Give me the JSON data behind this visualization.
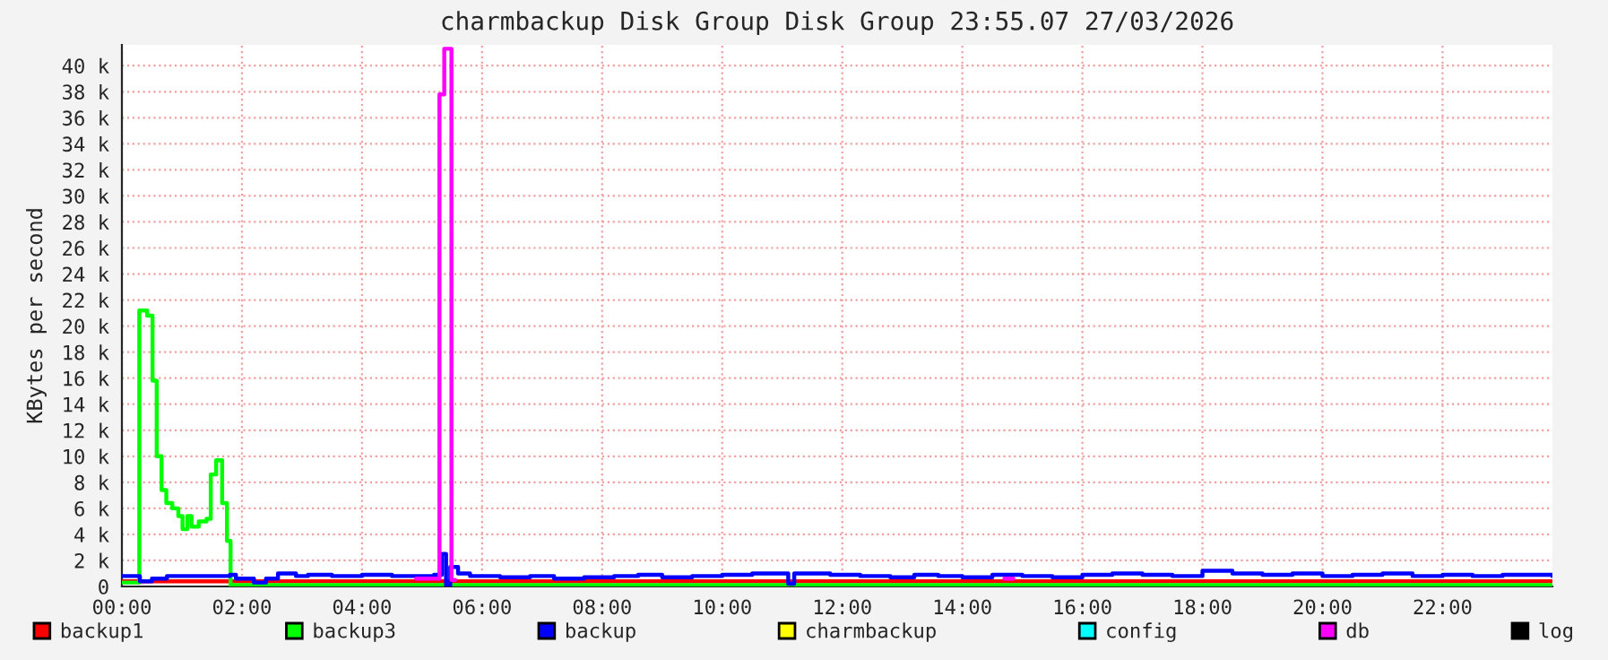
{
  "chart_data": {
    "type": "step",
    "title": "charmbackup Disk Group Disk Group 23:55.07 27/03/2026",
    "ylabel": "KBytes per second",
    "xlim": [
      0,
      23.83
    ],
    "ylim": [
      0,
      41600
    ],
    "xticks": [
      {
        "value": 0,
        "label": "00:00"
      },
      {
        "value": 2,
        "label": "02:00"
      },
      {
        "value": 4,
        "label": "04:00"
      },
      {
        "value": 6,
        "label": "06:00"
      },
      {
        "value": 8,
        "label": "08:00"
      },
      {
        "value": 10,
        "label": "10:00"
      },
      {
        "value": 12,
        "label": "12:00"
      },
      {
        "value": 14,
        "label": "14:00"
      },
      {
        "value": 16,
        "label": "16:00"
      },
      {
        "value": 18,
        "label": "18:00"
      },
      {
        "value": 20,
        "label": "20:00"
      },
      {
        "value": 22,
        "label": "22:00"
      }
    ],
    "yticks": [
      0,
      {
        "value": 2000,
        "label": "2 k"
      },
      {
        "value": 4000,
        "label": "4 k"
      },
      {
        "value": 6000,
        "label": "6 k"
      },
      {
        "value": 8000,
        "label": "8 k"
      },
      {
        "value": 10000,
        "label": "10 k"
      },
      {
        "value": 12000,
        "label": "12 k"
      },
      {
        "value": 14000,
        "label": "14 k"
      },
      {
        "value": 16000,
        "label": "16 k"
      },
      {
        "value": 18000,
        "label": "18 k"
      },
      {
        "value": 20000,
        "label": "20 k"
      },
      {
        "value": 22000,
        "label": "22 k"
      },
      {
        "value": 24000,
        "label": "24 k"
      },
      {
        "value": 26000,
        "label": "26 k"
      },
      {
        "value": 28000,
        "label": "28 k"
      },
      {
        "value": 30000,
        "label": "30 k"
      },
      {
        "value": 32000,
        "label": "32 k"
      },
      {
        "value": 34000,
        "label": "34 k"
      },
      {
        "value": 36000,
        "label": "36 k"
      },
      {
        "value": 38000,
        "label": "38 k"
      },
      {
        "value": 40000,
        "label": "40 k"
      }
    ],
    "grid": true,
    "legend": "bottom",
    "marker": "none",
    "line_style": "solid",
    "series": [
      {
        "name": "backup1",
        "color": "#ff0000",
        "x": [
          0,
          5.3,
          5.6,
          23.83
        ],
        "values": [
          400,
          400,
          400,
          400
        ]
      },
      {
        "name": "backup3",
        "color": "#00ff00",
        "x": [
          0,
          0.29,
          0.42,
          0.51,
          0.58,
          0.66,
          0.74,
          0.84,
          0.94,
          1.01,
          1.09,
          1.16,
          1.28,
          1.41,
          1.48,
          1.57,
          1.67,
          1.75,
          1.81,
          23.83
        ],
        "values": [
          300,
          21200,
          20800,
          15800,
          10000,
          7400,
          6400,
          6000,
          5400,
          4400,
          5400,
          4600,
          5000,
          5200,
          8600,
          9700,
          6400,
          3500,
          100,
          100
        ]
      },
      {
        "name": "backup",
        "color": "#0000ff",
        "x": [
          0,
          0.3,
          0.5,
          0.75,
          1.8,
          1.9,
          2.2,
          2.4,
          2.6,
          2.9,
          3.1,
          3.5,
          4.0,
          4.5,
          5.0,
          5.2,
          5.33,
          5.4,
          5.47,
          5.6,
          5.8,
          6.3,
          6.8,
          7.2,
          7.7,
          8.2,
          8.6,
          9.0,
          9.5,
          10.0,
          10.5,
          11.1,
          11.2,
          11.8,
          12.3,
          12.8,
          13.2,
          13.6,
          14.0,
          14.5,
          15.0,
          15.5,
          16.0,
          16.5,
          17.0,
          17.5,
          18.0,
          18.5,
          19.0,
          19.5,
          20.0,
          20.5,
          21.0,
          21.5,
          22.0,
          22.5,
          23.0,
          23.83
        ],
        "values": [
          800,
          400,
          600,
          800,
          900,
          600,
          300,
          600,
          1000,
          800,
          900,
          800,
          900,
          800,
          800,
          900,
          2500,
          0,
          1500,
          1000,
          800,
          700,
          800,
          600,
          700,
          800,
          900,
          700,
          800,
          900,
          1000,
          200,
          1000,
          900,
          800,
          700,
          900,
          800,
          700,
          900,
          800,
          700,
          900,
          1000,
          900,
          800,
          1200,
          1000,
          900,
          1000,
          800,
          900,
          1000,
          800,
          900,
          800,
          900,
          800
        ]
      },
      {
        "name": "charmbackup",
        "color": "#ffff00",
        "values": [
          null
        ]
      },
      {
        "name": "config",
        "color": "#00ffff",
        "values": [
          null
        ]
      },
      {
        "name": "db",
        "color": "#ff00ff",
        "x": [
          4.9,
          5.29,
          5.37,
          5.49,
          5.55,
          14.7,
          14.85
        ],
        "values": [
          600,
          37800,
          41300,
          500,
          null,
          600,
          600
        ]
      },
      {
        "name": "log",
        "color": "#000000",
        "values": [
          null
        ]
      }
    ]
  }
}
